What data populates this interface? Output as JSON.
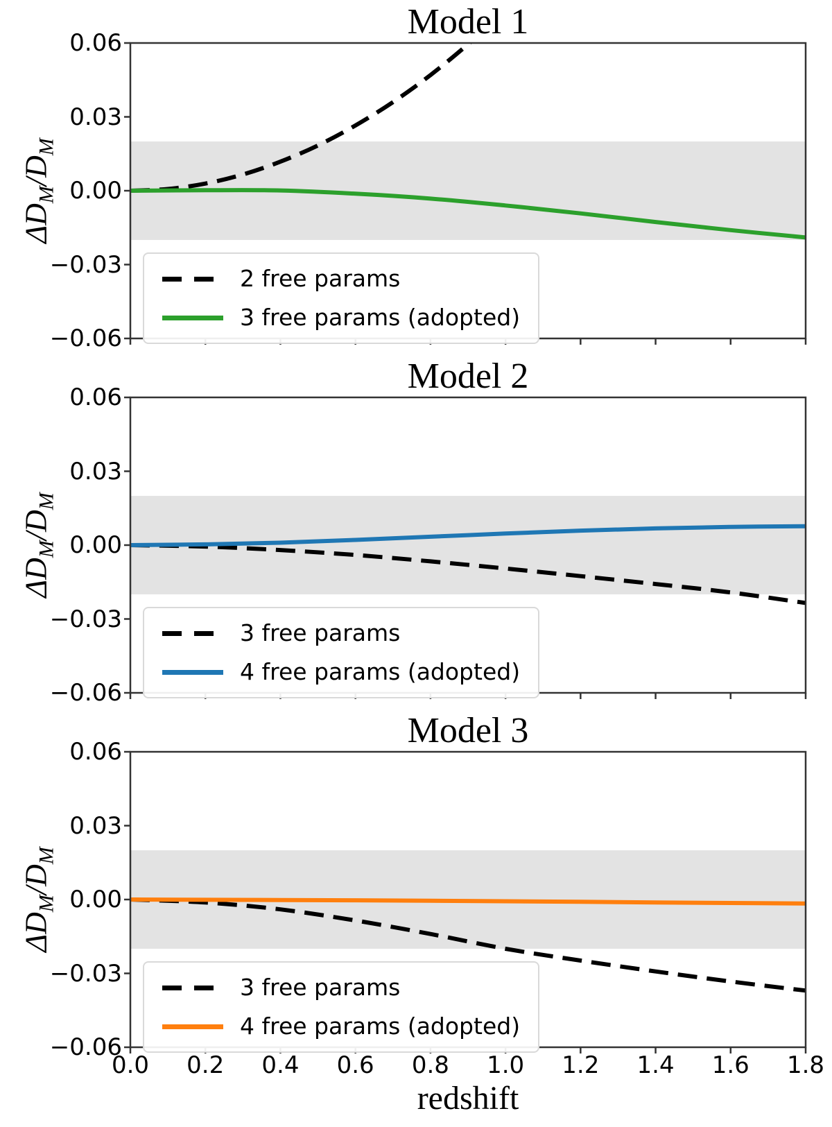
{
  "figure": {
    "axis_color": "#333333",
    "background": "#ffffff"
  },
  "chart_data": [
    {
      "type": "line",
      "title": "Model 1",
      "ylabel": "ΔD_M/D_M",
      "xlabel": null,
      "xlim": [
        0.0,
        1.8
      ],
      "ylim": [
        -0.06,
        0.06
      ],
      "xticks": [
        0.0,
        0.2,
        0.4,
        0.6,
        0.8,
        1.0,
        1.2,
        1.4,
        1.6,
        1.8
      ],
      "xtick_labels": null,
      "yticks": [
        0.06,
        0.03,
        0.0,
        -0.03,
        -0.06
      ],
      "ytick_labels": [
        "0.06",
        "0.03",
        "0.00",
        "−0.03",
        "−0.06"
      ],
      "band": {
        "min": -0.02,
        "max": 0.02,
        "color": "#e3e3e3"
      },
      "legend_position": "lower left",
      "grid": false,
      "series": [
        {
          "name": "2 free params",
          "color": "#000000",
          "style": "dashed",
          "x": [
            0.0,
            0.1,
            0.2,
            0.3,
            0.4,
            0.5,
            0.6,
            0.7,
            0.8,
            0.9,
            1.0
          ],
          "y": [
            0.0,
            0.0007,
            0.0029,
            0.0066,
            0.0118,
            0.0184,
            0.0265,
            0.036,
            0.047,
            0.0595,
            0.0735
          ]
        },
        {
          "name": "3 free params (adopted)",
          "color": "#2ca02c",
          "style": "solid",
          "x": [
            0.0,
            0.2,
            0.4,
            0.6,
            0.8,
            1.0,
            1.2,
            1.4,
            1.6,
            1.8
          ],
          "y": [
            0.0,
            0.0002,
            0.0001,
            -0.0012,
            -0.0032,
            -0.006,
            -0.0092,
            -0.0127,
            -0.016,
            -0.019
          ]
        }
      ]
    },
    {
      "type": "line",
      "title": "Model 2",
      "ylabel": "ΔD_M/D_M",
      "xlabel": null,
      "xlim": [
        0.0,
        1.8
      ],
      "ylim": [
        -0.06,
        0.06
      ],
      "xticks": [
        0.0,
        0.2,
        0.4,
        0.6,
        0.8,
        1.0,
        1.2,
        1.4,
        1.6,
        1.8
      ],
      "xtick_labels": null,
      "yticks": [
        0.06,
        0.03,
        0.0,
        -0.03,
        -0.06
      ],
      "ytick_labels": [
        "0.06",
        "0.03",
        "0.00",
        "−0.03",
        "−0.06"
      ],
      "band": {
        "min": -0.02,
        "max": 0.02,
        "color": "#e3e3e3"
      },
      "legend_position": "lower left",
      "grid": false,
      "series": [
        {
          "name": "3 free params",
          "color": "#000000",
          "style": "dashed",
          "x": [
            0.0,
            0.2,
            0.4,
            0.6,
            0.8,
            1.0,
            1.2,
            1.4,
            1.6,
            1.8
          ],
          "y": [
            0.0,
            -0.0006,
            -0.002,
            -0.004,
            -0.0066,
            -0.0095,
            -0.0126,
            -0.0158,
            -0.0192,
            -0.0235
          ]
        },
        {
          "name": "4 free params (adopted)",
          "color": "#1f77b4",
          "style": "solid",
          "x": [
            0.0,
            0.2,
            0.4,
            0.6,
            0.8,
            1.0,
            1.2,
            1.4,
            1.6,
            1.8
          ],
          "y": [
            0.0,
            0.0003,
            0.001,
            0.0021,
            0.0034,
            0.0047,
            0.0059,
            0.0068,
            0.0074,
            0.0077
          ]
        }
      ]
    },
    {
      "type": "line",
      "title": "Model 3",
      "ylabel": "ΔD_M/D_M",
      "xlabel": "redshift",
      "xlim": [
        0.0,
        1.8
      ],
      "ylim": [
        -0.06,
        0.06
      ],
      "xticks": [
        0.0,
        0.2,
        0.4,
        0.6,
        0.8,
        1.0,
        1.2,
        1.4,
        1.6,
        1.8
      ],
      "xtick_labels": [
        "0.0",
        "0.2",
        "0.4",
        "0.6",
        "0.8",
        "1.0",
        "1.2",
        "1.4",
        "1.6",
        "1.8"
      ],
      "yticks": [
        0.06,
        0.03,
        0.0,
        -0.03,
        -0.06
      ],
      "ytick_labels": [
        "0.06",
        "0.03",
        "0.00",
        "−0.03",
        "−0.06"
      ],
      "band": {
        "min": -0.02,
        "max": 0.02,
        "color": "#e3e3e3"
      },
      "legend_position": "lower left",
      "grid": false,
      "series": [
        {
          "name": "3 free params",
          "color": "#000000",
          "style": "dashed",
          "x": [
            0.0,
            0.2,
            0.4,
            0.6,
            0.8,
            1.0,
            1.2,
            1.4,
            1.6,
            1.8
          ],
          "y": [
            0.0,
            -0.0012,
            -0.004,
            -0.0085,
            -0.014,
            -0.02,
            -0.0248,
            -0.0292,
            -0.0333,
            -0.037
          ]
        },
        {
          "name": "4 free params (adopted)",
          "color": "#ff7f0e",
          "style": "solid",
          "x": [
            0.0,
            0.2,
            0.4,
            0.6,
            0.8,
            1.0,
            1.2,
            1.4,
            1.6,
            1.8
          ],
          "y": [
            0.0,
            -0.0001,
            -0.0002,
            -0.0003,
            -0.0005,
            -0.0007,
            -0.0009,
            -0.0012,
            -0.0014,
            -0.0016
          ]
        }
      ]
    }
  ]
}
